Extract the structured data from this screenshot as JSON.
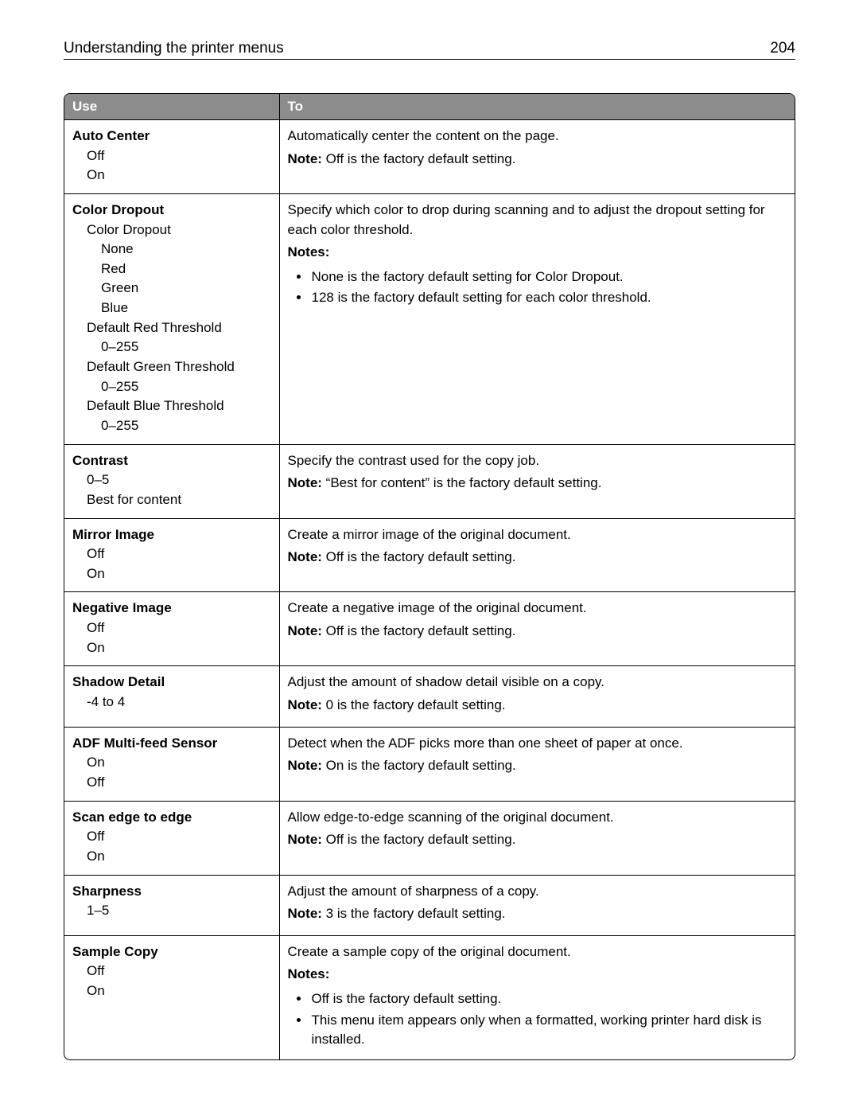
{
  "header": {
    "title": "Understanding the printer menus",
    "page_number": "204"
  },
  "table": {
    "columns": {
      "use": "Use",
      "to": "To"
    },
    "rows": [
      {
        "title": "Auto Center",
        "options_l1": [
          "Off",
          "On"
        ],
        "desc": "Automatically center the content on the page.",
        "note_label": "Note:",
        "note_text": " Off is the factory default setting."
      },
      {
        "title": "Color Dropout",
        "sub1": "Color Dropout",
        "sub1_opts": [
          "None",
          "Red",
          "Green",
          "Blue"
        ],
        "sub2": "Default Red Threshold",
        "sub2_opts": [
          "0–255"
        ],
        "sub3": "Default Green Threshold",
        "sub3_opts": [
          "0–255"
        ],
        "sub4": "Default Blue Threshold",
        "sub4_opts": [
          "0–255"
        ],
        "desc": "Specify which color to drop during scanning and to adjust the dropout setting for each color threshold.",
        "notes_label": "Notes:",
        "bullets": [
          "None is the factory default setting for Color Dropout.",
          "128 is the factory default setting for each color threshold."
        ]
      },
      {
        "title": "Contrast",
        "options_l1": [
          "0–5",
          "Best for content"
        ],
        "desc": "Specify the contrast used for the copy job.",
        "note_label": "Note:",
        "note_text": " “Best for content” is the factory default setting."
      },
      {
        "title": "Mirror Image",
        "options_l1": [
          "Off",
          "On"
        ],
        "desc": "Create a mirror image of the original document.",
        "note_label": "Note:",
        "note_text": " Off is the factory default setting."
      },
      {
        "title": "Negative Image",
        "options_l1": [
          "Off",
          "On"
        ],
        "desc": "Create a negative image of the original document.",
        "note_label": "Note:",
        "note_text": " Off is the factory default setting."
      },
      {
        "title": "Shadow Detail",
        "options_l1": [
          "-4 to 4"
        ],
        "desc": "Adjust the amount of shadow detail visible on a copy.",
        "note_label": "Note:",
        "note_text": " 0 is the factory default setting."
      },
      {
        "title": "ADF Multi-feed Sensor",
        "options_l1": [
          "On",
          "Off"
        ],
        "desc": "Detect when the ADF picks more than one sheet of paper at once.",
        "note_label": "Note:",
        "note_text": " On is the factory default setting."
      },
      {
        "title": "Scan edge to edge",
        "options_l1": [
          "Off",
          "On"
        ],
        "desc": "Allow edge-to-edge scanning of the original document.",
        "note_label": "Note:",
        "note_text": " Off is the factory default setting."
      },
      {
        "title": "Sharpness",
        "options_l1": [
          "1–5"
        ],
        "desc": "Adjust the amount of sharpness of a copy.",
        "note_label": "Note:",
        "note_text": " 3 is the factory default setting."
      },
      {
        "title": "Sample Copy",
        "options_l1": [
          "Off",
          "On"
        ],
        "desc": "Create a sample copy of the original document.",
        "notes_label": "Notes:",
        "bullets": [
          "Off is the factory default setting.",
          "This menu item appears only when a formatted, working printer hard disk is installed."
        ]
      }
    ]
  }
}
